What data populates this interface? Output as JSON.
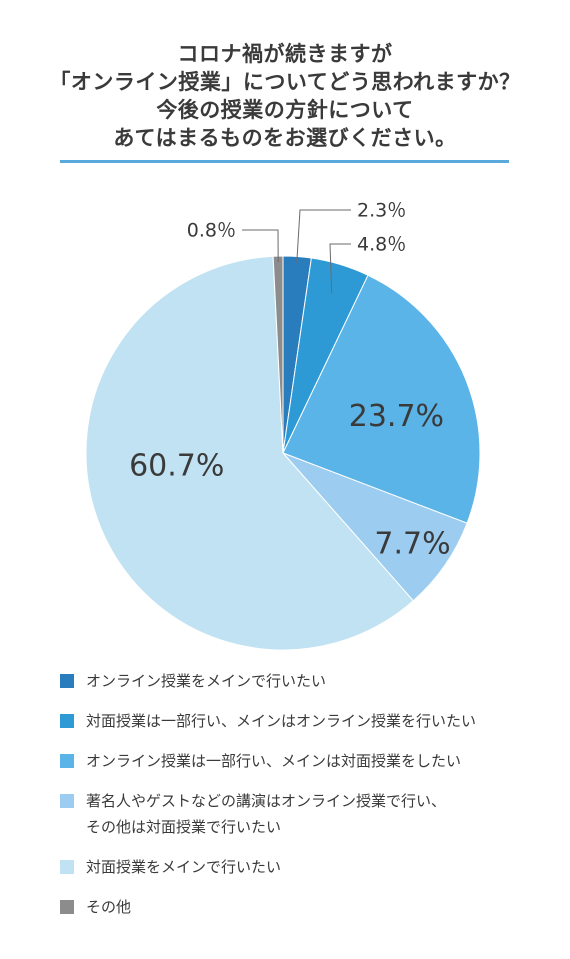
{
  "title_lines": [
    "コロナ禍が続きますが",
    "「オンライン授業」についてどう思われますか？",
    "今後の授業の方針について",
    "あてはまるものをお選びください。"
  ],
  "chart_data": {
    "type": "pie",
    "title": "コロナ禍が続きますが「オンライン授業」についてどう思われますか？今後の授業の方針についてあてはまるものをお選びください。",
    "slices": [
      {
        "label": "オンライン授業をメインで行いたい",
        "value": 2.3,
        "value_label": "2.3％",
        "color": "#2a7dbd"
      },
      {
        "label": "対面授業は一部行い、メインはオンライン授業を行いたい",
        "value": 4.8,
        "value_label": "4.8％",
        "color": "#2e9ad5"
      },
      {
        "label": "オンライン授業は一部行い、メインは対面授業をしたい",
        "value": 23.7,
        "value_label": "23.7%",
        "color": "#5bb4e7"
      },
      {
        "label": "著名人やゲストなどの講演はオンライン授業で行い、\nその他は対面授業で行いたい",
        "value": 7.7,
        "value_label": "7.7%",
        "color": "#9ccdf0"
      },
      {
        "label": "対面授業をメインで行いたい",
        "value": 60.7,
        "value_label": "60.7%",
        "color": "#c1e2f2"
      },
      {
        "label": "その他",
        "value": 0.8,
        "value_label": "0.8％",
        "color": "#8c8c8c"
      }
    ]
  }
}
